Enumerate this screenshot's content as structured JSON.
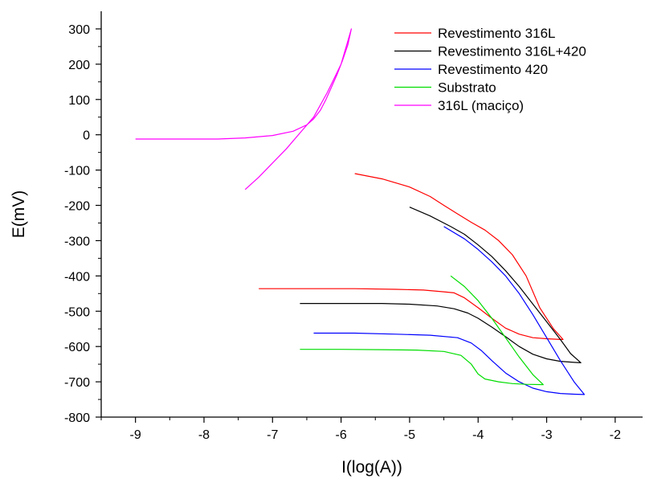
{
  "chart_data": {
    "type": "line",
    "title": "",
    "xlabel": "I(log(A))",
    "ylabel": "E(mV)",
    "xlim": [
      -9.5,
      -1.6
    ],
    "ylim": [
      -800,
      350
    ],
    "x_ticks": [
      -9,
      -8,
      -7,
      -6,
      -5,
      -4,
      -3,
      -2
    ],
    "x_tick_labels": [
      "-9",
      "-8",
      "-7",
      "-6",
      "-5",
      "-4",
      "-3",
      "-2"
    ],
    "y_ticks": [
      -800,
      -700,
      -600,
      -500,
      -400,
      -300,
      -200,
      -100,
      0,
      100,
      200,
      300
    ],
    "y_tick_labels": [
      "-800",
      "-700",
      "-600",
      "-500",
      "-400",
      "-300",
      "-200",
      "-100",
      "0",
      "100",
      "200",
      "300"
    ],
    "grid": false,
    "legend_position": "top-right",
    "series": [
      {
        "name": "Revestimento 316L",
        "color": "#ff0000",
        "x": [
          -7.2,
          -6.5,
          -5.8,
          -5.2,
          -4.8,
          -4.5,
          -4.35,
          -4.2,
          -4.0,
          -3.8,
          -3.6,
          -3.4,
          -3.2,
          -3.0,
          -2.8,
          -2.76,
          -2.76,
          -2.9,
          -3.1,
          -3.3,
          -3.5,
          -3.7,
          -3.9,
          -4.1,
          -4.3,
          -4.5,
          -4.7,
          -5.0,
          -5.4,
          -5.8
        ],
        "y": [
          -436,
          -436,
          -436,
          -438,
          -440,
          -445,
          -448,
          -462,
          -490,
          -520,
          -548,
          -565,
          -575,
          -578,
          -580,
          -580,
          -580,
          -550,
          -490,
          -400,
          -340,
          -300,
          -270,
          -248,
          -224,
          -200,
          -175,
          -148,
          -125,
          -110
        ]
      },
      {
        "name": "Revestimento 316L+420",
        "color": "#000000",
        "x": [
          -6.6,
          -6.0,
          -5.4,
          -5.0,
          -4.6,
          -4.35,
          -4.15,
          -4.0,
          -3.8,
          -3.6,
          -3.4,
          -3.2,
          -3.0,
          -2.8,
          -2.6,
          -2.5,
          -2.5,
          -2.65,
          -2.8,
          -3.0,
          -3.2,
          -3.4,
          -3.6,
          -3.8,
          -4.0,
          -4.2,
          -4.4,
          -4.7,
          -5.0
        ],
        "y": [
          -478,
          -478,
          -478,
          -480,
          -485,
          -493,
          -505,
          -520,
          -545,
          -572,
          -600,
          -622,
          -635,
          -642,
          -645,
          -646,
          -646,
          -620,
          -580,
          -530,
          -480,
          -430,
          -385,
          -345,
          -312,
          -282,
          -260,
          -230,
          -205
        ]
      },
      {
        "name": "Revestimento 420",
        "color": "#0000ff",
        "x": [
          -6.4,
          -5.8,
          -5.2,
          -4.7,
          -4.3,
          -4.1,
          -3.95,
          -3.8,
          -3.6,
          -3.4,
          -3.2,
          -3.0,
          -2.8,
          -2.6,
          -2.45,
          -2.45,
          -2.6,
          -2.8,
          -3.0,
          -3.2,
          -3.4,
          -3.6,
          -3.8,
          -4.0,
          -4.2,
          -4.5
        ],
        "y": [
          -562,
          -562,
          -565,
          -568,
          -575,
          -590,
          -612,
          -640,
          -675,
          -700,
          -718,
          -728,
          -733,
          -735,
          -736,
          -736,
          -700,
          -640,
          -575,
          -510,
          -450,
          -400,
          -360,
          -325,
          -295,
          -260
        ]
      },
      {
        "name": "Substrato",
        "color": "#00dd00",
        "x": [
          -6.6,
          -6.0,
          -5.4,
          -4.9,
          -4.5,
          -4.25,
          -4.1,
          -4.0,
          -3.9,
          -3.7,
          -3.5,
          -3.3,
          -3.05,
          -3.05,
          -3.2,
          -3.4,
          -3.6,
          -3.8,
          -4.0,
          -4.2,
          -4.4
        ],
        "y": [
          -608,
          -608,
          -609,
          -610,
          -614,
          -625,
          -650,
          -678,
          -692,
          -700,
          -705,
          -707,
          -708,
          -708,
          -680,
          -630,
          -575,
          -520,
          -470,
          -430,
          -400
        ]
      },
      {
        "name": "316L (maciço)",
        "color": "#ff00ff",
        "x": [
          -9.0,
          -8.6,
          -8.2,
          -7.8,
          -7.4,
          -7.0,
          -6.7,
          -6.5,
          -6.4,
          -6.3,
          -6.22,
          -6.14,
          -6.06,
          -5.98,
          -5.9,
          -5.85,
          -5.85,
          -6.0,
          -6.2,
          -6.4,
          -6.6,
          -6.8,
          -7.0,
          -7.2,
          -7.4
        ],
        "y": [
          -12,
          -12,
          -12,
          -12,
          -9,
          -2,
          10,
          28,
          45,
          70,
          100,
          135,
          170,
          210,
          255,
          300,
          300,
          200,
          120,
          50,
          5,
          -40,
          -80,
          -120,
          -155
        ]
      }
    ]
  }
}
